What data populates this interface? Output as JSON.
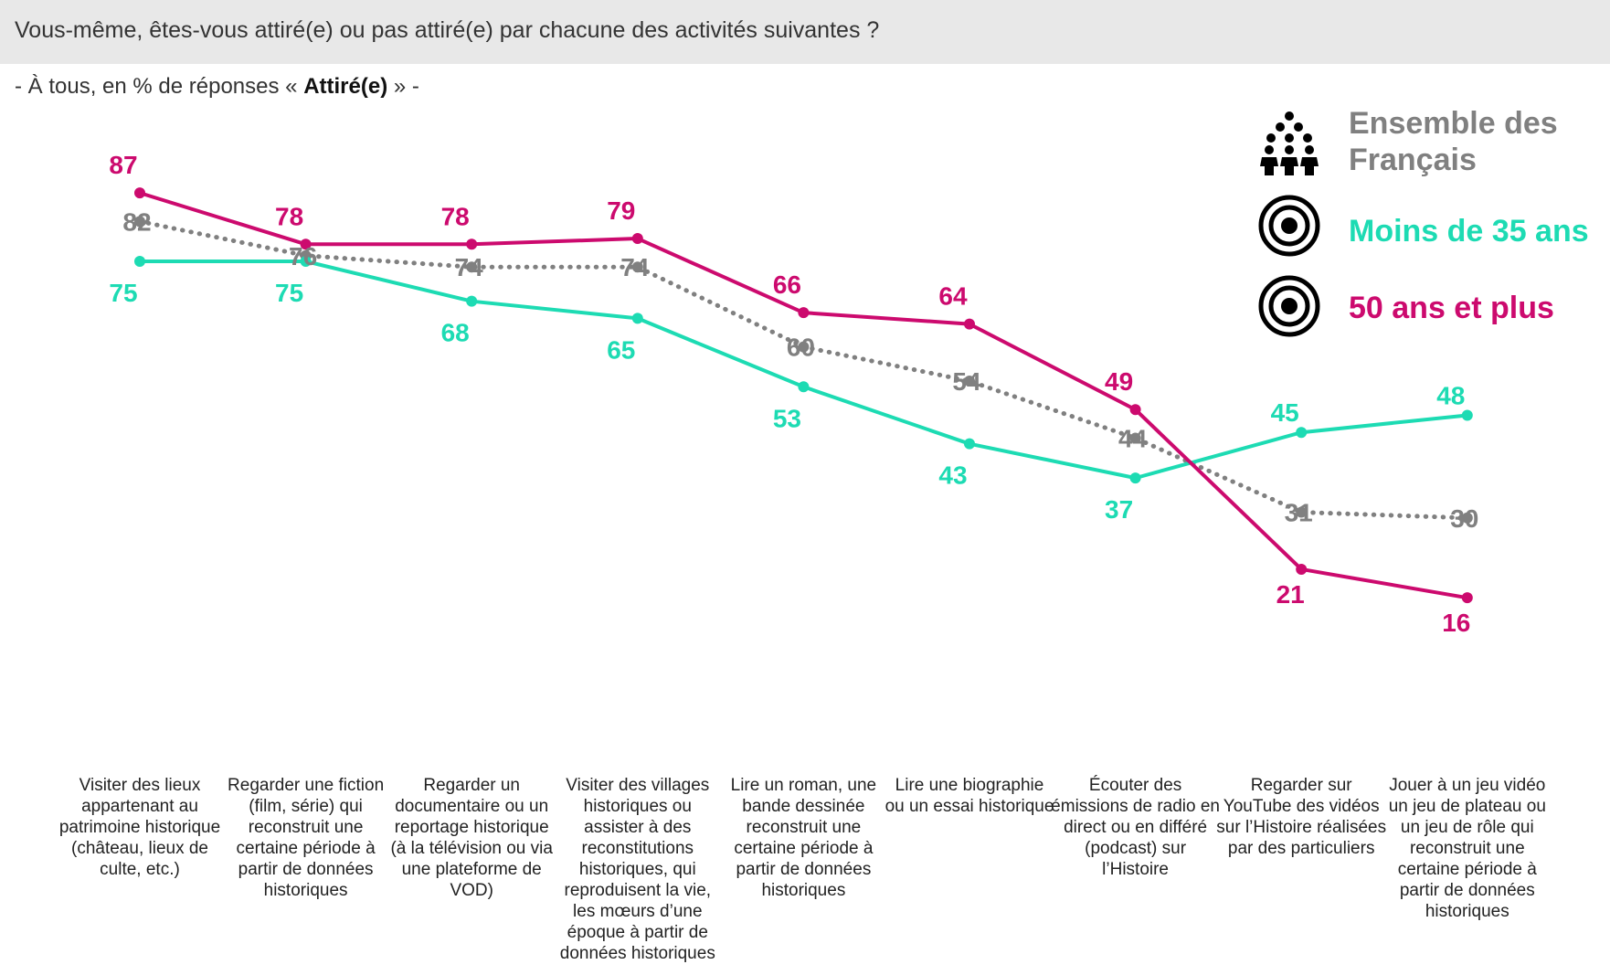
{
  "title": "Vous-même, êtes-vous attiré(e) ou pas attiré(e) par chacune des activités suivantes ?",
  "subtitle": {
    "prefix": "- À tous, en % de réponses « ",
    "bold": "Attiré(e)",
    "suffix": " » -"
  },
  "legend": [
    {
      "label_line1": "Ensemble des",
      "label_line2": "Français",
      "icon": "people-group-icon",
      "color": "#808080"
    },
    {
      "label_line1": "Moins de 35 ans",
      "label_line2": "",
      "icon": "target-icon",
      "color": "#1ddbb3"
    },
    {
      "label_line1": "50 ans et plus",
      "label_line2": "",
      "icon": "target-icon",
      "color": "#cc0a6e"
    }
  ],
  "chart_data": {
    "type": "line",
    "categories": [
      "Visiter des lieux appartenant au patrimoine historique (château, lieux de culte, etc.)",
      "Regarder une fiction (film, série) qui reconstruit une certaine période à partir de données historiques",
      "Regarder un documentaire ou un reportage historique (à la télévision ou via une plateforme de VOD)",
      "Visiter des villages historiques ou assister à des reconstitutions historiques, qui reproduisent la vie, les mœurs d’une époque à partir de données historiques",
      "Lire un roman, une bande dessinée reconstruit une certaine période à partir de données historiques",
      "Lire une biographie ou un essai historique",
      "Écouter des émissions de radio en direct ou en différé (podcast) sur l’Histoire",
      "Regarder sur YouTube des vidéos sur l’Histoire réalisées par des particuliers",
      "Jouer à un jeu vidéo un jeu de plateau ou un jeu de rôle qui reconstruit une certaine période à partir de données historiques"
    ],
    "series": [
      {
        "name": "Ensemble des Français",
        "color": "#808080",
        "style": "dotted",
        "values": [
          82,
          76,
          74,
          74,
          60,
          54,
          44,
          31,
          30
        ]
      },
      {
        "name": "Moins de 35 ans",
        "color": "#1ddbb3",
        "style": "solid",
        "values": [
          75,
          75,
          68,
          65,
          53,
          43,
          37,
          45,
          48
        ]
      },
      {
        "name": "50 ans et plus",
        "color": "#cc0a6e",
        "style": "solid",
        "values": [
          87,
          78,
          78,
          79,
          66,
          64,
          49,
          21,
          16
        ]
      }
    ],
    "ylim": [
      0,
      100
    ],
    "grid": false,
    "legend_position": "top-right",
    "data_labels": true
  }
}
